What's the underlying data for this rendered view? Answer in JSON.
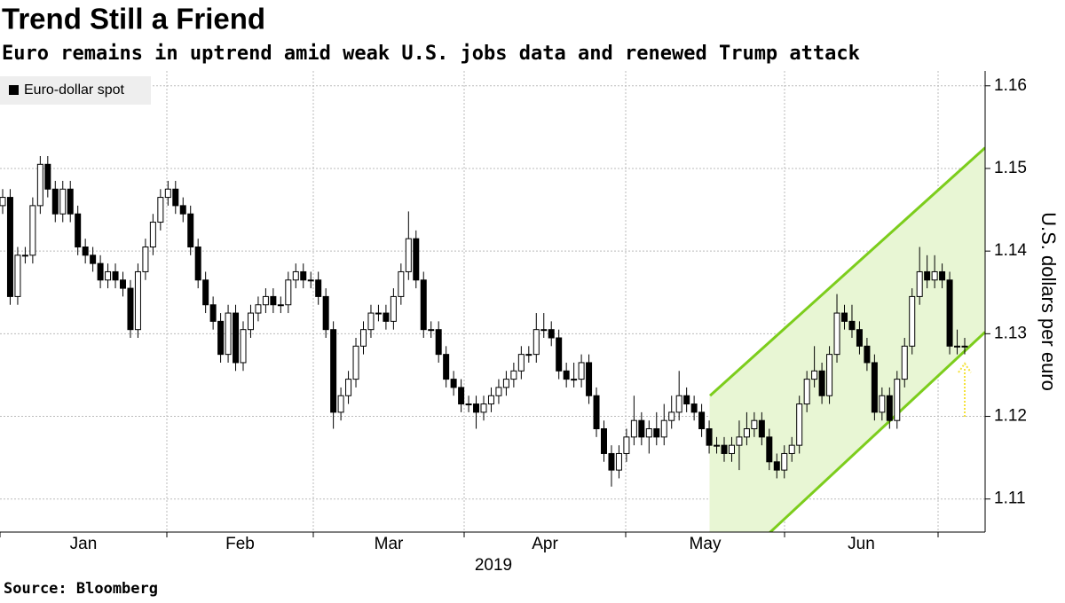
{
  "chart_data": {
    "type": "candlestick",
    "title": "Trend Still a Friend",
    "subtitle": "Euro remains in uptrend amid weak U.S. jobs data and renewed Trump attack",
    "y_label": "U.S. dollars per euro",
    "year_label": "2019",
    "source": "Source: Bloomberg",
    "month_labels": [
      "Jan",
      "Feb",
      "Mar",
      "Apr",
      "May",
      "Jun"
    ],
    "ylim": [
      1.106,
      1.1618
    ],
    "yticks": [
      1.11,
      1.12,
      1.13,
      1.14,
      1.15,
      1.16
    ],
    "grid": true,
    "legend": "top-left",
    "up_color": "#ffffff",
    "down_color": "#000000",
    "channel": {
      "color": "#7ccd1c",
      "fill": "#e8f6d4",
      "upper": [
        1.1225,
        1.1525
      ],
      "lower": [
        1.0992,
        1.1302
      ]
    },
    "series": [
      {
        "name": "Euro-dollar spot",
        "open": [
          1.1455,
          1.1465,
          1.1345,
          1.1395,
          1.1395,
          1.1455,
          1.1505,
          1.1475,
          1.1445,
          1.1475,
          1.1445,
          1.1405,
          1.1395,
          1.1385,
          1.1365,
          1.1375,
          1.1365,
          1.1355,
          1.1305,
          1.1375,
          1.1405,
          1.1435,
          1.1465,
          1.1475,
          1.1455,
          1.1445,
          1.1405,
          1.1365,
          1.1335,
          1.1315,
          1.1275,
          1.1325,
          1.1265,
          1.1305,
          1.1325,
          1.1335,
          1.1345,
          1.1335,
          1.1335,
          1.1365,
          1.1375,
          1.1365,
          1.1365,
          1.1345,
          1.1305,
          1.1205,
          1.1225,
          1.1245,
          1.1285,
          1.1305,
          1.1325,
          1.1325,
          1.1315,
          1.1345,
          1.1375,
          1.1415,
          1.1365,
          1.1305,
          1.1305,
          1.1275,
          1.1245,
          1.1235,
          1.1215,
          1.1215,
          1.1205,
          1.1215,
          1.1225,
          1.1235,
          1.1245,
          1.1255,
          1.1275,
          1.1275,
          1.1305,
          1.1305,
          1.1295,
          1.1255,
          1.1245,
          1.1245,
          1.1265,
          1.1225,
          1.1185,
          1.1155,
          1.1135,
          1.1155,
          1.1175,
          1.1195,
          1.1175,
          1.1185,
          1.1175,
          1.1195,
          1.1205,
          1.1225,
          1.1215,
          1.1205,
          1.1185,
          1.1165,
          1.1165,
          1.1155,
          1.1165,
          1.1175,
          1.1185,
          1.1195,
          1.1175,
          1.1145,
          1.1135,
          1.1155,
          1.1165,
          1.1215,
          1.1245,
          1.1255,
          1.1225,
          1.1275,
          1.1325,
          1.1315,
          1.1305,
          1.1285,
          1.1265,
          1.1205,
          1.1225,
          1.1195,
          1.1245,
          1.1285,
          1.1345,
          1.1375,
          1.1365,
          1.1375,
          1.1365,
          1.1285,
          1.1285
        ],
        "high": [
          1.1475,
          1.1475,
          1.1405,
          1.1405,
          1.1465,
          1.1515,
          1.1515,
          1.1485,
          1.1485,
          1.1485,
          1.1455,
          1.1415,
          1.1405,
          1.1395,
          1.1385,
          1.1385,
          1.1375,
          1.1365,
          1.1385,
          1.1415,
          1.1445,
          1.1475,
          1.1485,
          1.1485,
          1.1465,
          1.1455,
          1.1415,
          1.1375,
          1.1345,
          1.1325,
          1.1335,
          1.1335,
          1.1315,
          1.1335,
          1.1345,
          1.1355,
          1.1355,
          1.1345,
          1.1375,
          1.1385,
          1.1385,
          1.1375,
          1.1375,
          1.1355,
          1.1315,
          1.1235,
          1.1255,
          1.1295,
          1.1315,
          1.1335,
          1.1335,
          1.1335,
          1.1355,
          1.1385,
          1.1448,
          1.1425,
          1.1375,
          1.1315,
          1.1315,
          1.1285,
          1.1255,
          1.1245,
          1.1225,
          1.1225,
          1.1225,
          1.1235,
          1.1245,
          1.1255,
          1.1265,
          1.1285,
          1.1285,
          1.1325,
          1.1325,
          1.1315,
          1.1305,
          1.1265,
          1.1265,
          1.1275,
          1.1275,
          1.1235,
          1.1195,
          1.1165,
          1.1165,
          1.1185,
          1.1225,
          1.1205,
          1.1195,
          1.1205,
          1.1215,
          1.1225,
          1.1255,
          1.1235,
          1.1225,
          1.1215,
          1.1195,
          1.1175,
          1.1175,
          1.1175,
          1.1195,
          1.1205,
          1.1205,
          1.1205,
          1.1185,
          1.1155,
          1.1165,
          1.1175,
          1.1225,
          1.1255,
          1.1285,
          1.1265,
          1.1285,
          1.1348,
          1.1335,
          1.1335,
          1.1315,
          1.1295,
          1.1275,
          1.1235,
          1.1235,
          1.1255,
          1.1295,
          1.1355,
          1.1405,
          1.1395,
          1.1395,
          1.1385,
          1.1375,
          1.1305,
          1.1295
        ],
        "low": [
          1.1445,
          1.1335,
          1.1335,
          1.1385,
          1.1385,
          1.1445,
          1.1465,
          1.1435,
          1.1435,
          1.1435,
          1.1395,
          1.1385,
          1.1375,
          1.1355,
          1.1355,
          1.1355,
          1.1345,
          1.1295,
          1.1295,
          1.1365,
          1.1395,
          1.1425,
          1.1455,
          1.1445,
          1.1435,
          1.1395,
          1.1355,
          1.1325,
          1.1305,
          1.1265,
          1.1265,
          1.1255,
          1.1255,
          1.1295,
          1.1315,
          1.1325,
          1.1325,
          1.1325,
          1.1325,
          1.1355,
          1.1355,
          1.1355,
          1.1335,
          1.1295,
          1.1185,
          1.1195,
          1.1215,
          1.1235,
          1.1275,
          1.1295,
          1.1315,
          1.1305,
          1.1305,
          1.1335,
          1.1365,
          1.1355,
          1.1295,
          1.1295,
          1.1265,
          1.1235,
          1.1225,
          1.1205,
          1.1205,
          1.1185,
          1.1195,
          1.1205,
          1.1215,
          1.1225,
          1.1235,
          1.1245,
          1.1265,
          1.1265,
          1.1295,
          1.1285,
          1.1245,
          1.1235,
          1.1235,
          1.1235,
          1.1215,
          1.1175,
          1.1145,
          1.1115,
          1.1125,
          1.1145,
          1.1165,
          1.1165,
          1.1155,
          1.1165,
          1.1165,
          1.1185,
          1.1195,
          1.1205,
          1.1195,
          1.1175,
          1.1155,
          1.1155,
          1.1145,
          1.1145,
          1.1135,
          1.1165,
          1.1175,
          1.1165,
          1.1135,
          1.1125,
          1.1125,
          1.1145,
          1.1155,
          1.1205,
          1.1235,
          1.1215,
          1.1215,
          1.1265,
          1.1305,
          1.1295,
          1.1275,
          1.1255,
          1.1195,
          1.1195,
          1.1185,
          1.1185,
          1.1235,
          1.1275,
          1.1335,
          1.1355,
          1.1355,
          1.1355,
          1.1275,
          1.1275,
          1.1275
        ],
        "close": [
          1.1465,
          1.1345,
          1.1395,
          1.1395,
          1.1455,
          1.1505,
          1.1475,
          1.1445,
          1.1475,
          1.1445,
          1.1405,
          1.1395,
          1.1385,
          1.1365,
          1.1375,
          1.1365,
          1.1355,
          1.1305,
          1.1375,
          1.1405,
          1.1435,
          1.1465,
          1.1475,
          1.1455,
          1.1445,
          1.1405,
          1.1365,
          1.1335,
          1.1315,
          1.1275,
          1.1325,
          1.1265,
          1.1305,
          1.1325,
          1.1335,
          1.1345,
          1.1335,
          1.1335,
          1.1365,
          1.1375,
          1.1365,
          1.1365,
          1.1345,
          1.1305,
          1.1205,
          1.1225,
          1.1245,
          1.1285,
          1.1305,
          1.1325,
          1.1325,
          1.1315,
          1.1345,
          1.1375,
          1.1415,
          1.1365,
          1.1305,
          1.1305,
          1.1275,
          1.1245,
          1.1235,
          1.1215,
          1.1215,
          1.1205,
          1.1215,
          1.1225,
          1.1235,
          1.1245,
          1.1255,
          1.1275,
          1.1275,
          1.1305,
          1.1305,
          1.1295,
          1.1255,
          1.1245,
          1.1245,
          1.1265,
          1.1225,
          1.1185,
          1.1155,
          1.1135,
          1.1155,
          1.1175,
          1.1195,
          1.1175,
          1.1185,
          1.1175,
          1.1195,
          1.1205,
          1.1225,
          1.1215,
          1.1205,
          1.1185,
          1.1165,
          1.1165,
          1.1155,
          1.1165,
          1.1175,
          1.1185,
          1.1195,
          1.1175,
          1.1145,
          1.1135,
          1.1155,
          1.1165,
          1.1215,
          1.1245,
          1.1255,
          1.1225,
          1.1275,
          1.1325,
          1.1315,
          1.1305,
          1.1285,
          1.1265,
          1.1205,
          1.1225,
          1.1195,
          1.1245,
          1.1285,
          1.1345,
          1.1375,
          1.1365,
          1.1375,
          1.1365,
          1.1285,
          1.1285,
          1.1285
        ]
      }
    ]
  }
}
